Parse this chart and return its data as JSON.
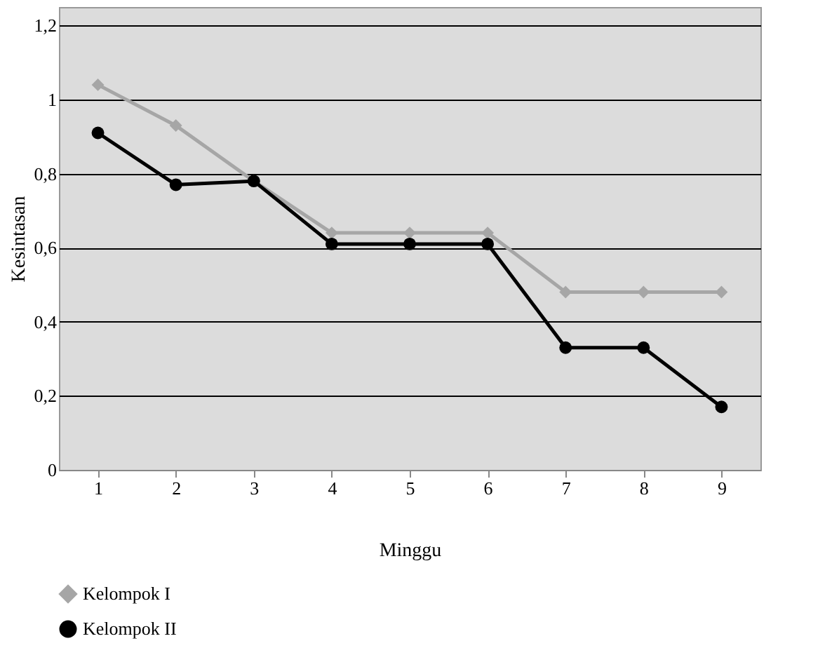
{
  "chart_data": {
    "type": "line",
    "xlabel": "Minggu",
    "ylabel": "Kesintasan",
    "categories": [
      "1",
      "2",
      "3",
      "4",
      "5",
      "6",
      "7",
      "8",
      "9"
    ],
    "series": [
      {
        "name": "Kelompok I",
        "color": "#a6a6a6",
        "marker": "diamond",
        "values": [
          1.04,
          0.93,
          0.78,
          0.64,
          0.64,
          0.64,
          0.48,
          0.48,
          0.48
        ]
      },
      {
        "name": "Kelompok II",
        "color": "#000000",
        "marker": "circle",
        "values": [
          0.91,
          0.77,
          0.78,
          0.61,
          0.61,
          0.61,
          0.33,
          0.33,
          0.17
        ]
      }
    ],
    "ylim": [
      0,
      1.25
    ],
    "yticks": [
      {
        "value": 0,
        "label": "0"
      },
      {
        "value": 0.2,
        "label": "0,2"
      },
      {
        "value": 0.4,
        "label": "0,4"
      },
      {
        "value": 0.6,
        "label": "0,6"
      },
      {
        "value": 0.8,
        "label": "0,8"
      },
      {
        "value": 1,
        "label": "1"
      },
      {
        "value": 1.2,
        "label": "1,2"
      }
    ],
    "grid": "y",
    "legend": "bottom left"
  }
}
